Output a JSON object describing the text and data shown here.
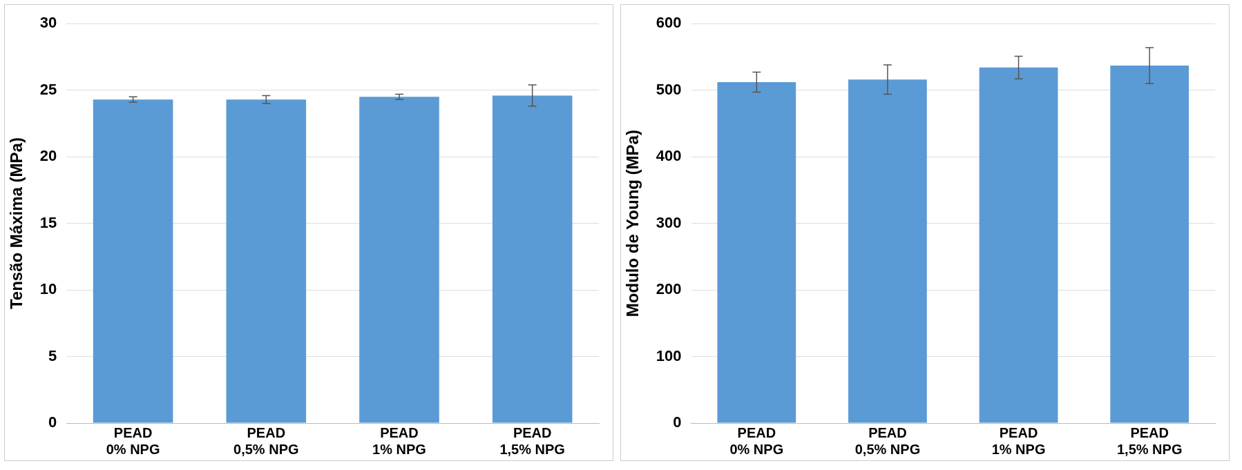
{
  "chart_data": [
    {
      "type": "bar",
      "ylabel": "Tensão Máxima (MPa)",
      "categories": [
        "PEAD\n0% NPG",
        "PEAD\n0,5% NPG",
        "PEAD\n1% NPG",
        "PEAD\n1,5% NPG"
      ],
      "values": [
        24.3,
        24.3,
        24.5,
        24.6
      ],
      "errors": [
        0.2,
        0.3,
        0.2,
        0.8
      ],
      "color": "#5b9bd5",
      "ylim": [
        0,
        30
      ],
      "yticks": [
        0,
        5,
        10,
        15,
        20,
        25,
        30
      ],
      "grid": "y"
    },
    {
      "type": "bar",
      "ylabel": "Modulo de Young (MPa)",
      "categories": [
        "PEAD\n0% NPG",
        "PEAD\n0,5% NPG",
        "PEAD\n1% NPG",
        "PEAD\n1,5% NPG"
      ],
      "values": [
        512,
        516,
        534,
        537
      ],
      "errors": [
        15,
        22,
        17,
        27
      ],
      "color": "#5b9bd5",
      "ylim": [
        0,
        600
      ],
      "yticks": [
        0,
        100,
        200,
        300,
        400,
        500,
        600
      ],
      "grid": "y"
    }
  ]
}
